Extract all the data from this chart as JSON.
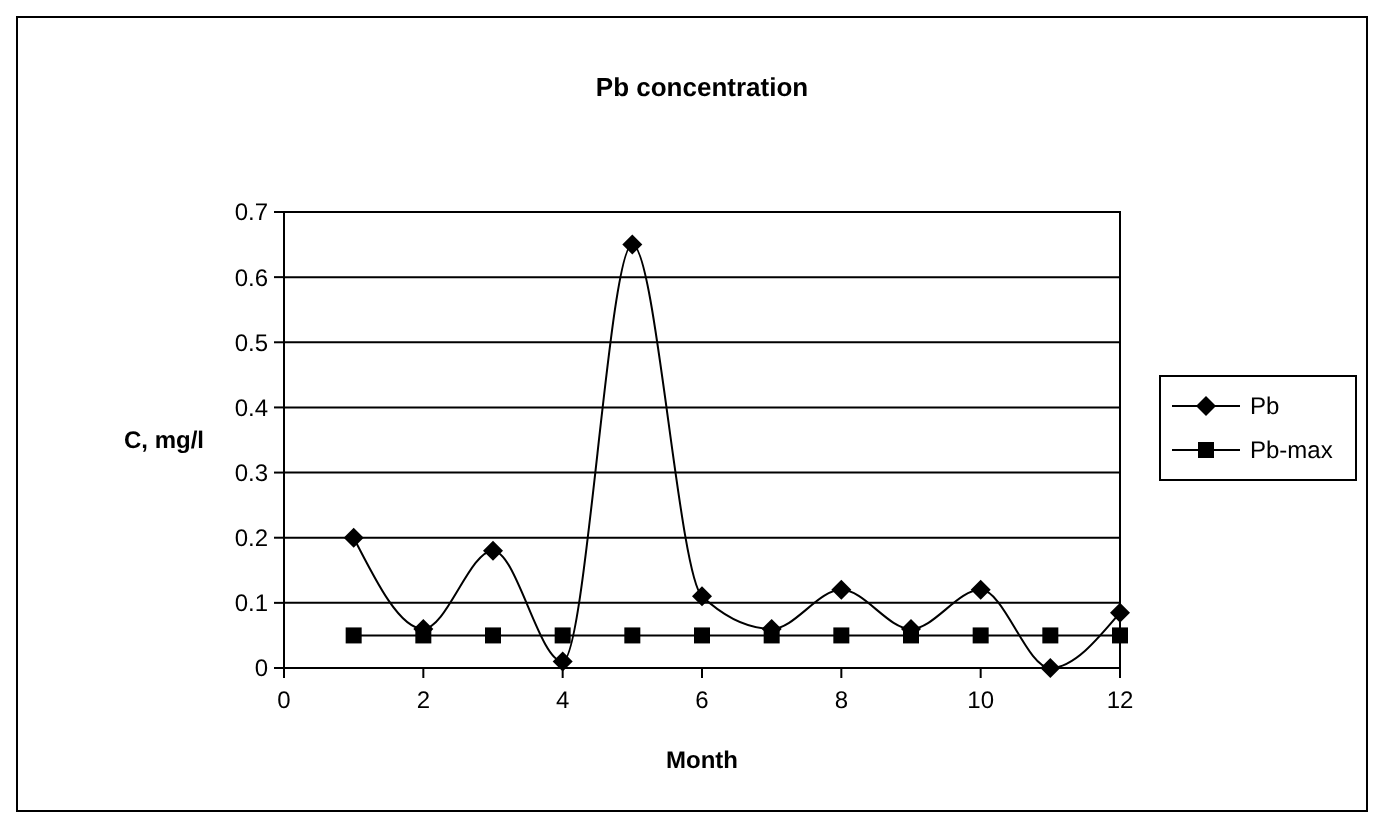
{
  "chart_data": {
    "type": "line",
    "title": "Pb concentration",
    "xlabel": "Month",
    "ylabel": "C, mg/l",
    "x": [
      1,
      2,
      3,
      4,
      5,
      6,
      7,
      8,
      9,
      10,
      11,
      12
    ],
    "series": [
      {
        "name": "Pb",
        "color": "#000000",
        "marker": "diamond",
        "values": [
          0.2,
          0.06,
          0.18,
          0.01,
          0.65,
          0.11,
          0.06,
          0.12,
          0.06,
          0.12,
          0.0,
          0.085
        ]
      },
      {
        "name": "Pb-max",
        "color": "#000000",
        "marker": "square",
        "values": [
          0.05,
          0.05,
          0.05,
          0.05,
          0.05,
          0.05,
          0.05,
          0.05,
          0.05,
          0.05,
          0.05,
          0.05
        ]
      }
    ],
    "xlim": [
      0,
      12
    ],
    "xticks": [
      0,
      2,
      4,
      6,
      8,
      10,
      12
    ],
    "ylim": [
      0,
      0.7
    ],
    "yticks": [
      0,
      0.1,
      0.2,
      0.3,
      0.4,
      0.5,
      0.6,
      0.7
    ],
    "grid": "y",
    "legend": "right"
  }
}
